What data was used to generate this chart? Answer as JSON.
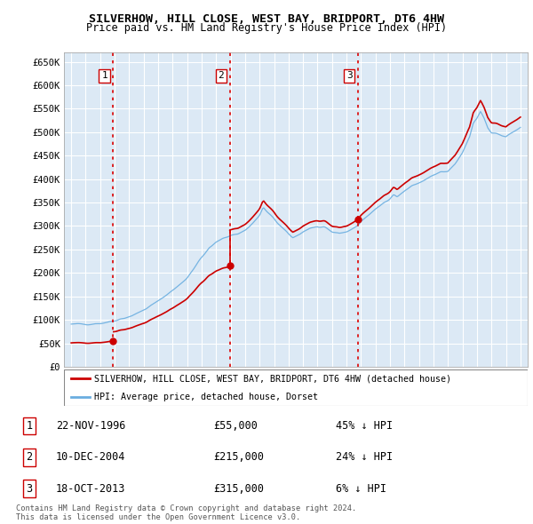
{
  "title": "SILVERHOW, HILL CLOSE, WEST BAY, BRIDPORT, DT6 4HW",
  "subtitle": "Price paid vs. HM Land Registry's House Price Index (HPI)",
  "xlim": [
    1993.5,
    2025.5
  ],
  "ylim": [
    0,
    670000
  ],
  "yticks": [
    0,
    50000,
    100000,
    150000,
    200000,
    250000,
    300000,
    350000,
    400000,
    450000,
    500000,
    550000,
    600000,
    650000
  ],
  "ytick_labels": [
    "£0",
    "£50K",
    "£100K",
    "£150K",
    "£200K",
    "£250K",
    "£300K",
    "£350K",
    "£400K",
    "£450K",
    "£500K",
    "£550K",
    "£600K",
    "£650K"
  ],
  "xticks": [
    1994,
    1995,
    1996,
    1997,
    1998,
    1999,
    2000,
    2001,
    2002,
    2003,
    2004,
    2005,
    2006,
    2007,
    2008,
    2009,
    2010,
    2011,
    2012,
    2013,
    2014,
    2015,
    2016,
    2017,
    2018,
    2019,
    2020,
    2021,
    2022,
    2023,
    2024,
    2025
  ],
  "sale_dates": [
    1996.896,
    2004.942,
    2013.792
  ],
  "sale_prices": [
    55000,
    215000,
    315000
  ],
  "vline_color": "#dd0000",
  "dot_color": "#cc0000",
  "sale_labels": [
    "1",
    "2",
    "3"
  ],
  "legend_entries": [
    "SILVERHOW, HILL CLOSE, WEST BAY, BRIDPORT, DT6 4HW (detached house)",
    "HPI: Average price, detached house, Dorset"
  ],
  "line_color_red": "#cc0000",
  "line_color_blue": "#6aaee0",
  "background_color": "#dce9f5",
  "grid_color": "#ffffff",
  "footer_line1": "Contains HM Land Registry data © Crown copyright and database right 2024.",
  "footer_line2": "This data is licensed under the Open Government Licence v3.0.",
  "table_rows": [
    [
      "1",
      "22-NOV-1996",
      "£55,000",
      "45% ↓ HPI"
    ],
    [
      "2",
      "10-DEC-2004",
      "£215,000",
      "24% ↓ HPI"
    ],
    [
      "3",
      "18-OCT-2013",
      "£315,000",
      "6% ↓ HPI"
    ]
  ]
}
